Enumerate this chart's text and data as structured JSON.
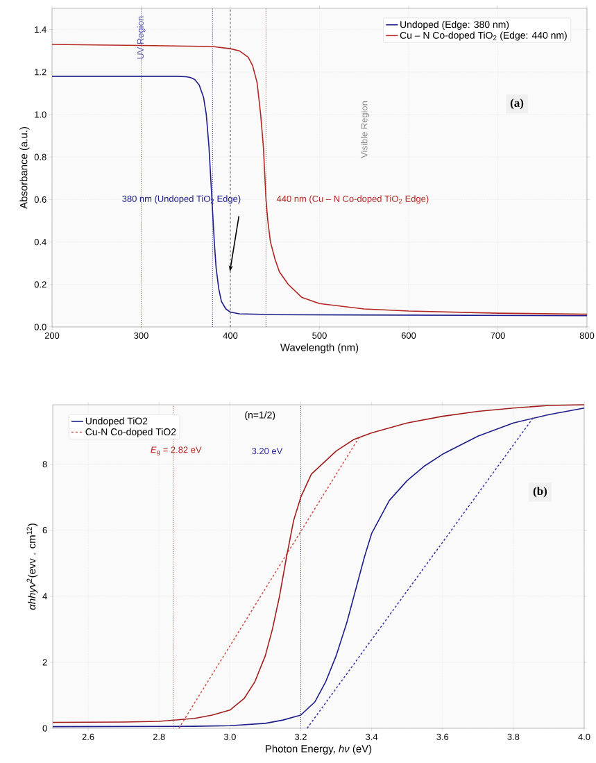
{
  "chart_data": [
    {
      "type": "line",
      "xlabel": "Wavelength (nm)",
      "ylabel": "Absorbance (a.u.)",
      "xlim": [
        200,
        800
      ],
      "ylim": [
        0,
        1.5
      ],
      "xticks": [
        200,
        300,
        400,
        500,
        600,
        700,
        800
      ],
      "yticks": [
        {
          "value": 0,
          "label": "0.0"
        },
        0.2,
        0.4,
        0.6,
        0.8,
        {
          "value": 1,
          "label": "1.0"
        },
        1.2,
        1.4
      ],
      "grid": true,
      "legend": "top right",
      "series": [
        {
          "name": "Undoped (Edge: 380 nm)",
          "color": "#1c1c8a",
          "line_style": "solid",
          "x": [
            200,
            340,
            350,
            355,
            360,
            365,
            370,
            373,
            376,
            378,
            380,
            382,
            384,
            387,
            390,
            395,
            400,
            410,
            450,
            600,
            800
          ],
          "values": [
            1.18,
            1.18,
            1.178,
            1.175,
            1.165,
            1.14,
            1.08,
            1.0,
            0.85,
            0.7,
            0.55,
            0.4,
            0.28,
            0.18,
            0.12,
            0.085,
            0.07,
            0.062,
            0.058,
            0.056,
            0.053
          ]
        },
        {
          "name": "Cu – N Co-doped TiO$_{2}$ (Edge: 440 nm)",
          "color": "#b22520",
          "line_style": "solid",
          "x": [
            200,
            300,
            380,
            400,
            410,
            420,
            425,
            430,
            434,
            437,
            440,
            442,
            445,
            450,
            455,
            465,
            480,
            500,
            550,
            600,
            700,
            800
          ],
          "values": [
            1.33,
            1.325,
            1.32,
            1.31,
            1.3,
            1.27,
            1.23,
            1.15,
            1.0,
            0.85,
            0.6,
            0.5,
            0.4,
            0.32,
            0.26,
            0.2,
            0.14,
            0.11,
            0.085,
            0.075,
            0.065,
            0.06
          ]
        }
      ],
      "ref_lines": [
        {
          "axis": "x",
          "value": 300,
          "label": "UV Region",
          "color": "#5a5aa8",
          "line_style": "dotted"
        },
        {
          "axis": "x",
          "value": 380,
          "label": "380 nm (Undoped TiO$_{2}$ Edge)",
          "color": "#1c1c8a",
          "line_style": "dotted"
        },
        {
          "axis": "x",
          "value": 400,
          "color": "#555555",
          "line_style": "dashed"
        },
        {
          "axis": "x",
          "value": 440,
          "label": "440 nm (Cu – N Co-doped TiO$_{2}$ Edge)",
          "color": "#b22520",
          "line_style": "dotted"
        }
      ],
      "annotations": [
        "Visible Region",
        "(a)"
      ]
    },
    {
      "type": "line",
      "xlabel": "Photon Energy, *hν* (eV)",
      "ylabel": "*αhhyν*$^{2}$(evv . cm$^{12}$)",
      "xlim": [
        2.5,
        4.0
      ],
      "ylim": [
        0,
        9.8
      ],
      "xticks": [
        2.6,
        2.8,
        {
          "value": 3,
          "label": "3.0"
        },
        3.2,
        3.4,
        3.6,
        3.8,
        {
          "value": 4,
          "label": "4.0"
        }
      ],
      "yticks": [
        0,
        2,
        4,
        6,
        8
      ],
      "grid": true,
      "legend": "top left",
      "series": [
        {
          "name": "Undoped TiO2",
          "color": "#1c1c8a",
          "line_style": "solid",
          "x": [
            2.5,
            2.9,
            3.0,
            3.1,
            3.15,
            3.2,
            3.24,
            3.27,
            3.3,
            3.33,
            3.35,
            3.38,
            3.4,
            3.45,
            3.5,
            3.55,
            3.6,
            3.7,
            3.8,
            3.9,
            4.0
          ],
          "values": [
            0.05,
            0.06,
            0.08,
            0.15,
            0.25,
            0.4,
            0.8,
            1.4,
            2.2,
            3.2,
            4.0,
            5.2,
            5.9,
            6.9,
            7.5,
            7.95,
            8.3,
            8.85,
            9.25,
            9.5,
            9.7
          ]
        },
        {
          "name": "Cu-N Co-doped TiO2",
          "color": "#d0574c",
          "line_style": "dashed",
          "x": [
            2.856,
            3.365
          ],
          "values": [
            0,
            8.82
          ]
        },
        {
          "color": "#a31c1c",
          "line_style": "solid",
          "x": [
            2.5,
            2.7,
            2.8,
            2.9,
            2.95,
            3.0,
            3.04,
            3.07,
            3.1,
            3.12,
            3.14,
            3.16,
            3.18,
            3.2,
            3.23,
            3.26,
            3.3,
            3.35,
            3.4,
            3.5,
            3.6,
            3.7,
            3.8,
            3.9,
            4.0
          ],
          "values": [
            0.18,
            0.19,
            0.21,
            0.3,
            0.4,
            0.55,
            0.9,
            1.4,
            2.2,
            3.0,
            4.0,
            5.2,
            6.3,
            7.0,
            7.7,
            8.0,
            8.4,
            8.75,
            8.95,
            9.25,
            9.45,
            9.6,
            9.7,
            9.78,
            9.8
          ]
        },
        {
          "color": "#3c3ca8",
          "line_style": "dashed",
          "x": [
            3.218,
            3.859
          ],
          "values": [
            0,
            9.45
          ]
        }
      ],
      "ref_lines": [
        {
          "axis": "x",
          "value": 2.84,
          "color": "#b22520",
          "line_style": "dotted"
        },
        {
          "axis": "x",
          "value": 3.2,
          "label": "3.20 eV",
          "color": "#2a2a9a",
          "line_style": "dotted"
        }
      ],
      "annotations": [
        "(n=1/2)",
        "(b)",
        "*E*$_{g}$ = 2.82 eV"
      ]
    }
  ]
}
